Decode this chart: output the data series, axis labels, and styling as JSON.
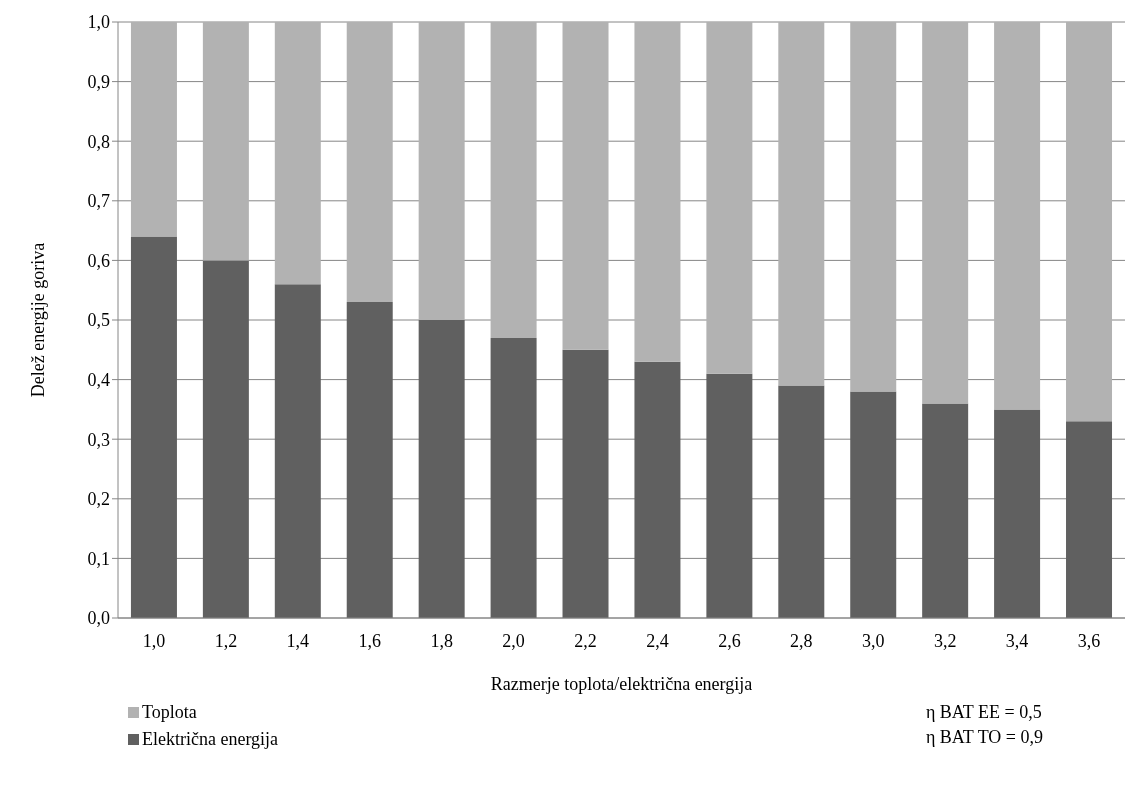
{
  "chart_data": {
    "type": "bar",
    "stacked": true,
    "xlabel": "Razmerje toplota/električna energija",
    "ylabel": "Delež energije goriva",
    "categories": [
      "1,0",
      "1,2",
      "1,4",
      "1,6",
      "1,8",
      "2,0",
      "2,2",
      "2,4",
      "2,6",
      "2,8",
      "3,0",
      "3,2",
      "3,4",
      "3,6"
    ],
    "series": [
      {
        "name": "Električna energija",
        "color": "#606060",
        "values": [
          0.64,
          0.6,
          0.56,
          0.53,
          0.5,
          0.47,
          0.45,
          0.43,
          0.41,
          0.39,
          0.38,
          0.36,
          0.35,
          0.33
        ]
      },
      {
        "name": "Toplota",
        "color": "#b2b2b2",
        "values": [
          0.36,
          0.4,
          0.44,
          0.47,
          0.5,
          0.53,
          0.55,
          0.57,
          0.59,
          0.61,
          0.62,
          0.64,
          0.65,
          0.67
        ]
      }
    ],
    "ylim": [
      0,
      1
    ],
    "yticks": [
      {
        "value": 0,
        "label": "0,0"
      },
      {
        "value": 0.1,
        "label": "0,1"
      },
      {
        "value": 0.2,
        "label": "0,2"
      },
      {
        "value": 0.3,
        "label": "0,3"
      },
      {
        "value": 0.4,
        "label": "0,4"
      },
      {
        "value": 0.5,
        "label": "0,5"
      },
      {
        "value": 0.6,
        "label": "0,6"
      },
      {
        "value": 0.7,
        "label": "0,7"
      },
      {
        "value": 0.8,
        "label": "0,8"
      },
      {
        "value": 0.9,
        "label": "0,9"
      },
      {
        "value": 1,
        "label": "1,0"
      }
    ],
    "grid": "y",
    "legend": "bottom left",
    "annotations": [
      "η BAT EE = 0,5",
      "η BAT TO = 0,9"
    ]
  }
}
